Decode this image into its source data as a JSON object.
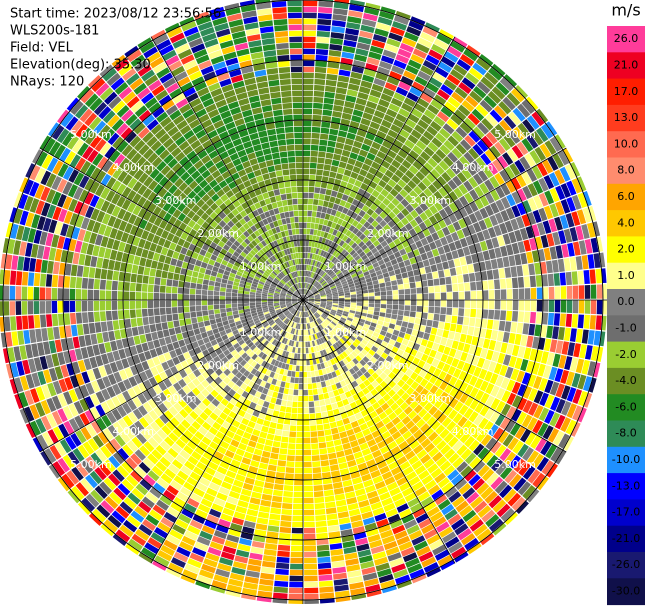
{
  "chart_data": {
    "type": "ppi",
    "header": [
      "Start time: 2023/08/12 23:56:56",
      "WLS200s-181",
      "Field: VEL",
      "Elevation(deg): 35.30",
      "NRays: 120"
    ],
    "nrays": 120,
    "colorbar": {
      "unit": "m/s",
      "ticks": [
        {
          "value": 26,
          "label": "26.0"
        },
        {
          "value": 21,
          "label": "21.0"
        },
        {
          "value": 17,
          "label": "17.0"
        },
        {
          "value": 13,
          "label": "13.0"
        },
        {
          "value": 10,
          "label": "10.0"
        },
        {
          "value": 8,
          "label": "8.0"
        },
        {
          "value": 6,
          "label": "6.0"
        },
        {
          "value": 4,
          "label": "4.0"
        },
        {
          "value": 2,
          "label": "2.0"
        },
        {
          "value": 1,
          "label": "1.0"
        },
        {
          "value": 0,
          "label": "0.0"
        },
        {
          "value": -1,
          "label": "-1.0"
        },
        {
          "value": -2,
          "label": "-2.0"
        },
        {
          "value": -4,
          "label": "-4.0"
        },
        {
          "value": -6,
          "label": "-6.0"
        },
        {
          "value": -8,
          "label": "-8.0"
        },
        {
          "value": -10,
          "label": "-10.0"
        },
        {
          "value": -13,
          "label": "-13.0"
        },
        {
          "value": -17,
          "label": "-17.0"
        },
        {
          "value": -21,
          "label": "-21.0"
        },
        {
          "value": -26,
          "label": "-26.0"
        },
        {
          "value": -30,
          "label": "-30.0"
        }
      ],
      "colors": [
        "#ff3c9a",
        "#ee0022",
        "#ff1e00",
        "#ff3c1e",
        "#ff6a50",
        "#ff8c6e",
        "#ffa500",
        "#ffc800",
        "#ffff00",
        "#ffff8c",
        "#808080",
        "#6e6e6e",
        "#9acd32",
        "#6b8e23",
        "#228b22",
        "#2e8b57",
        "#1e90ff",
        "#0000ff",
        "#0000cd",
        "#00008b",
        "#191970",
        "#10104a"
      ]
    },
    "range_rings": [
      {
        "value": 1,
        "label": "1.00km"
      },
      {
        "value": 2,
        "label": "2.00km"
      },
      {
        "value": 3,
        "label": "3.00km"
      },
      {
        "value": 4,
        "label": "4.00km"
      },
      {
        "value": 5,
        "label": "5.00km"
      }
    ]
  }
}
